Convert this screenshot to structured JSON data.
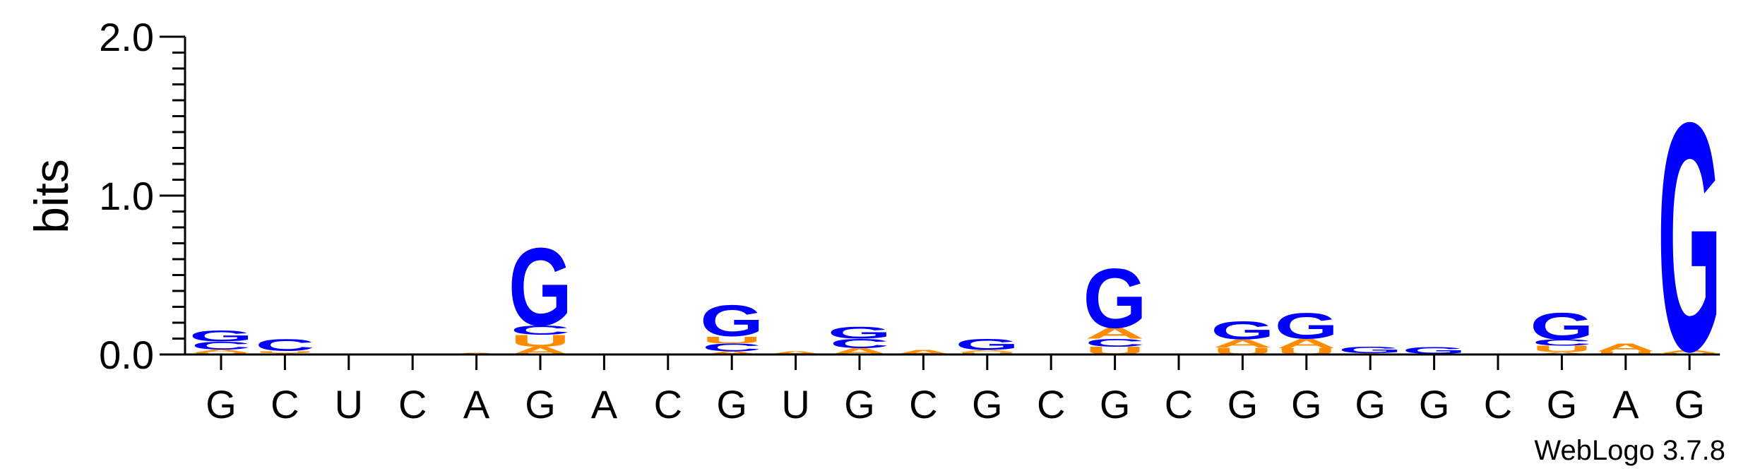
{
  "chart_data": {
    "type": "sequence-logo",
    "ylabel": "bits",
    "ylim": [
      0,
      2.0
    ],
    "yticks": [
      "0.0",
      "1.0",
      "2.0"
    ],
    "colors": {
      "G": "#0000ff",
      "A": "#ff8c00",
      "U": "#ff8c00",
      "C": "#0000ff"
    },
    "positions": [
      {
        "label": "G",
        "stack": [
          {
            "letter": "U",
            "h": 0.012
          },
          {
            "letter": "A",
            "h": 0.02
          },
          {
            "letter": "C",
            "h": 0.05
          },
          {
            "letter": "G",
            "h": 0.07
          }
        ]
      },
      {
        "label": "C",
        "stack": [
          {
            "letter": "A",
            "h": 0.01
          },
          {
            "letter": "U",
            "h": 0.012
          },
          {
            "letter": "C",
            "h": 0.075
          }
        ]
      },
      {
        "label": "U",
        "stack": []
      },
      {
        "label": "C",
        "stack": []
      },
      {
        "label": "A",
        "stack": [
          {
            "letter": "A",
            "h": 0.012
          }
        ]
      },
      {
        "label": "G",
        "stack": [
          {
            "letter": "A",
            "h": 0.05
          },
          {
            "letter": "U",
            "h": 0.075
          },
          {
            "letter": "C",
            "h": 0.06
          },
          {
            "letter": "G",
            "h": 0.5
          }
        ]
      },
      {
        "label": "A",
        "stack": []
      },
      {
        "label": "C",
        "stack": []
      },
      {
        "label": "G",
        "stack": [
          {
            "letter": "A",
            "h": 0.02
          },
          {
            "letter": "C",
            "h": 0.05
          },
          {
            "letter": "U",
            "h": 0.045
          },
          {
            "letter": "G",
            "h": 0.2
          }
        ]
      },
      {
        "label": "U",
        "stack": [
          {
            "letter": "A",
            "h": 0.02
          }
        ]
      },
      {
        "label": "G",
        "stack": [
          {
            "letter": "A",
            "h": 0.04
          },
          {
            "letter": "C",
            "h": 0.06
          },
          {
            "letter": "G",
            "h": 0.075
          }
        ]
      },
      {
        "label": "C",
        "stack": [
          {
            "letter": "A",
            "h": 0.03
          }
        ]
      },
      {
        "label": "G",
        "stack": [
          {
            "letter": "U",
            "h": 0.015
          },
          {
            "letter": "A",
            "h": 0.015
          },
          {
            "letter": "G",
            "h": 0.07
          }
        ]
      },
      {
        "label": "C",
        "stack": []
      },
      {
        "label": "G",
        "stack": [
          {
            "letter": "U",
            "h": 0.05
          },
          {
            "letter": "C",
            "h": 0.05
          },
          {
            "letter": "A",
            "h": 0.07
          },
          {
            "letter": "G",
            "h": 0.38
          }
        ]
      },
      {
        "label": "C",
        "stack": []
      },
      {
        "label": "G",
        "stack": [
          {
            "letter": "U",
            "h": 0.045
          },
          {
            "letter": "A",
            "h": 0.05
          },
          {
            "letter": "G",
            "h": 0.115
          }
        ]
      },
      {
        "label": "G",
        "stack": [
          {
            "letter": "U",
            "h": 0.04
          },
          {
            "letter": "A",
            "h": 0.06
          },
          {
            "letter": "G",
            "h": 0.165
          }
        ]
      },
      {
        "label": "G",
        "stack": [
          {
            "letter": "A",
            "h": 0.01
          },
          {
            "letter": "G",
            "h": 0.04
          }
        ]
      },
      {
        "label": "G",
        "stack": [
          {
            "letter": "U",
            "h": 0.005
          },
          {
            "letter": "G",
            "h": 0.045
          }
        ]
      },
      {
        "label": "C",
        "stack": []
      },
      {
        "label": "G",
        "stack": [
          {
            "letter": "A",
            "h": 0.015
          },
          {
            "letter": "U",
            "h": 0.04
          },
          {
            "letter": "C",
            "h": 0.04
          },
          {
            "letter": "G",
            "h": 0.17
          }
        ]
      },
      {
        "label": "A",
        "stack": [
          {
            "letter": "U",
            "h": 0.02
          },
          {
            "letter": "A",
            "h": 0.05
          }
        ]
      },
      {
        "label": "G",
        "stack": [
          {
            "letter": "U",
            "h": 0.01
          },
          {
            "letter": "A",
            "h": 0.02
          },
          {
            "letter": "G",
            "h": 1.47
          }
        ]
      }
    ]
  },
  "credit": "WebLogo 3.7.8"
}
